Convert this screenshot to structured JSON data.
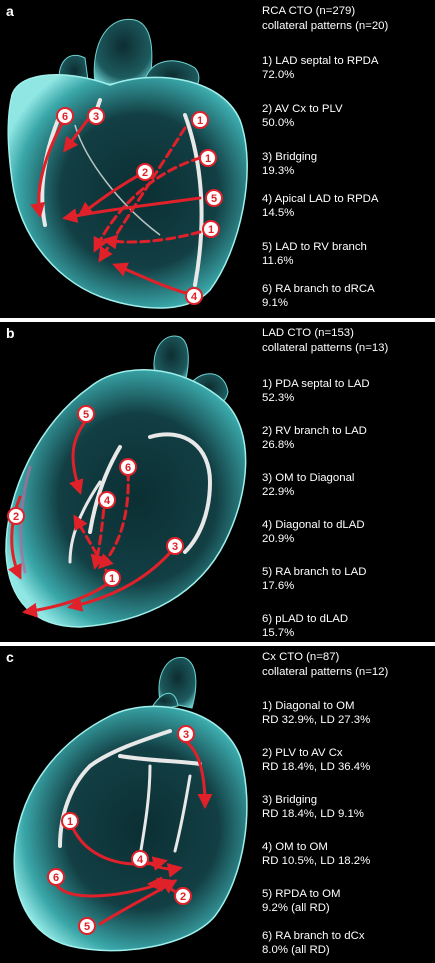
{
  "colors": {
    "background": "#000000",
    "heart": "#5fc9c9",
    "arrow": "#e0212a",
    "vessel": "#e8e8e8",
    "text": "#ffffff"
  },
  "panels": [
    {
      "label": "a",
      "title": "RCA CTO (n=279)",
      "subtitle": "collateral patterns (n=20)",
      "patterns": [
        {
          "name": "1) LAD septal to RPDA",
          "value": "72.0%"
        },
        {
          "name": "2) AV Cx to PLV",
          "value": "50.0%"
        },
        {
          "name": "3) Bridging",
          "value": "19.3%"
        },
        {
          "name": "4) Apical LAD to RPDA",
          "value": "14.5%"
        },
        {
          "name": "5) LAD to RV branch",
          "value": "11.6%"
        },
        {
          "name": "6) RA branch to dRCA",
          "value": "9.1%"
        }
      ],
      "markers": [
        "6",
        "3",
        "1",
        "2",
        "1",
        "5",
        "1",
        "4"
      ]
    },
    {
      "label": "b",
      "title": "LAD CTO (n=153)",
      "subtitle": "collateral patterns (n=13)",
      "patterns": [
        {
          "name": "1) PDA septal to LAD",
          "value": "52.3%"
        },
        {
          "name": "2) RV branch to LAD",
          "value": "26.8%"
        },
        {
          "name": "3) OM to Diagonal",
          "value": "22.9%"
        },
        {
          "name": "4) Diagonal to dLAD",
          "value": "20.9%"
        },
        {
          "name": "5) RA branch to LAD",
          "value": "17.6%"
        },
        {
          "name": "6) pLAD to dLAD",
          "value": "15.7%"
        }
      ],
      "markers": [
        "5",
        "6",
        "4",
        "2",
        "3",
        "1"
      ]
    },
    {
      "label": "c",
      "title": "Cx CTO (n=87)",
      "subtitle": "collateral patterns (n=12)",
      "patterns": [
        {
          "name": "1) Diagonal to OM",
          "value": "RD 32.9%, LD 27.3%"
        },
        {
          "name": "2) PLV to AV Cx",
          "value": "RD 18.4%, LD 36.4%"
        },
        {
          "name": "3) Bridging",
          "value": "RD 18.4%, LD 9.1%"
        },
        {
          "name": "4) OM to OM",
          "value": "RD 10.5%, LD 18.2%"
        },
        {
          "name": "5) RPDA to OM",
          "value": "9.2% (all RD)"
        },
        {
          "name": "6) RA branch to dCx",
          "value": "8.0% (all RD)"
        }
      ],
      "markers": [
        "3",
        "1",
        "4",
        "6",
        "2",
        "5"
      ]
    }
  ]
}
